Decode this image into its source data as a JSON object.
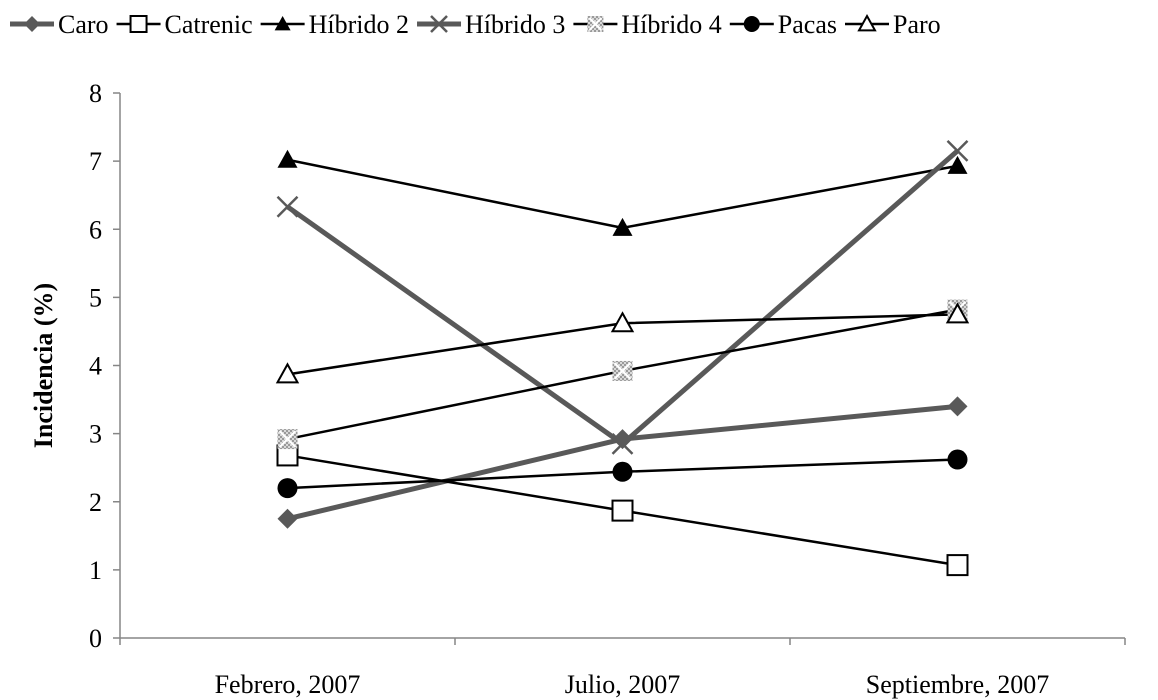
{
  "chart_data": {
    "type": "line",
    "title": "",
    "xlabel": "",
    "ylabel": "Incidencia (%)",
    "ylim": [
      0,
      8
    ],
    "yticks": [
      0,
      1,
      2,
      3,
      4,
      5,
      6,
      7,
      8
    ],
    "categories": [
      "Febrero, 2007",
      "Julio, 2007",
      "Septiembre, 2007"
    ],
    "grid": false,
    "legend": "top",
    "series": [
      {
        "name": "Caro",
        "values": [
          1.75,
          2.92,
          3.4
        ],
        "color": "#595959",
        "width": 5,
        "marker": "diamond"
      },
      {
        "name": "Catrenic",
        "values": [
          2.68,
          1.87,
          1.07
        ],
        "color": "#000000",
        "width": 2.5,
        "marker": "square-open"
      },
      {
        "name": "Híbrido 2",
        "values": [
          7.02,
          6.02,
          6.93
        ],
        "color": "#000000",
        "width": 2.5,
        "marker": "triangle-filled"
      },
      {
        "name": "Híbrido 3",
        "values": [
          6.33,
          2.85,
          7.15
        ],
        "color": "#595959",
        "width": 5,
        "marker": "x"
      },
      {
        "name": "Híbrido 4",
        "values": [
          2.92,
          3.92,
          4.82
        ],
        "color": "#000000",
        "width": 2.5,
        "marker": "square-pattern"
      },
      {
        "name": "Pacas",
        "values": [
          2.2,
          2.44,
          2.62
        ],
        "color": "#000000",
        "width": 2.5,
        "marker": "circle-filled"
      },
      {
        "name": "Paro",
        "values": [
          3.87,
          4.62,
          4.75
        ],
        "color": "#000000",
        "width": 2.5,
        "marker": "triangle-open"
      }
    ]
  }
}
